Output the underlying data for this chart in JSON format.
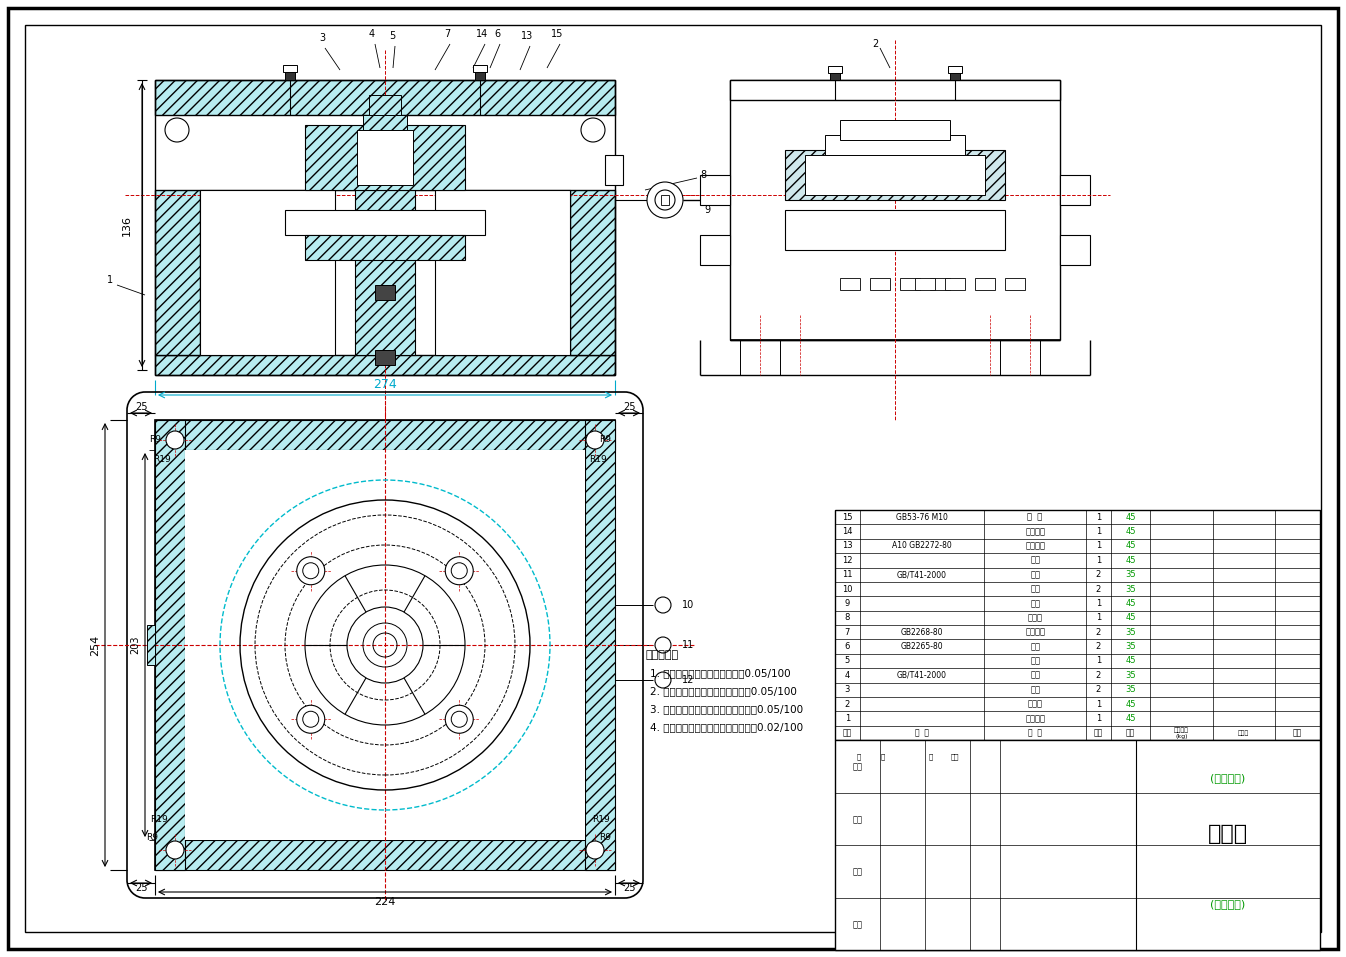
{
  "bg_color": "#ffffff",
  "cyan_fill": "#b8ecf0",
  "hatch_fill": "#b8ecf0",
  "title": "钻夹具",
  "drawing_number": "(图样代号)",
  "company": "(单位名称)",
  "tech_requirements": [
    "技术要求：",
    "1. 钻模板对夹具体底面平行度：0.05/100",
    "2. 钻套轴线对夹具体底面垂直度：0.05/100",
    "3. 钻套中心线对心轴中心线平行度：0.05/100",
    "4. 心轴中心线对夹具体底面垂直度：0.02/100"
  ],
  "bom_items": [
    {
      "no": "15",
      "code": "GB53-76 M10",
      "name": "螺  母",
      "qty": "1",
      "mat": "45"
    },
    {
      "no": "14",
      "code": "",
      "name": "菱形螺钉",
      "qty": "1",
      "mat": "45"
    },
    {
      "no": "13",
      "code": "A10 GB2272-80",
      "name": "槽面压夹",
      "qty": "1",
      "mat": "45"
    },
    {
      "no": "12",
      "code": "",
      "name": "销轴",
      "qty": "1",
      "mat": "45"
    },
    {
      "no": "11",
      "code": "GB/T41-2000",
      "name": "螺母",
      "qty": "2",
      "mat": "35"
    },
    {
      "no": "10",
      "code": "",
      "name": "销钉",
      "qty": "2",
      "mat": "35"
    },
    {
      "no": "9",
      "code": "",
      "name": "螺钉",
      "qty": "1",
      "mat": "45"
    },
    {
      "no": "8",
      "code": "",
      "name": "支撑板",
      "qty": "1",
      "mat": "45"
    },
    {
      "no": "7",
      "code": "GB2268-80",
      "name": "钻套螺钉",
      "qty": "2",
      "mat": "35"
    },
    {
      "no": "6",
      "code": "GB2265-80",
      "name": "衬套",
      "qty": "2",
      "mat": "35"
    },
    {
      "no": "5",
      "code": "",
      "name": "心轴",
      "qty": "1",
      "mat": "45"
    },
    {
      "no": "4",
      "code": "GB/T41-2000",
      "name": "螺母",
      "qty": "2",
      "mat": "35"
    },
    {
      "no": "3",
      "code": "",
      "name": "螺柱",
      "qty": "2",
      "mat": "35"
    },
    {
      "no": "2",
      "code": "",
      "name": "钻模板",
      "qty": "1",
      "mat": "45"
    },
    {
      "no": "1",
      "code": "",
      "name": "夹具底板",
      "qty": "1",
      "mat": "45"
    }
  ]
}
